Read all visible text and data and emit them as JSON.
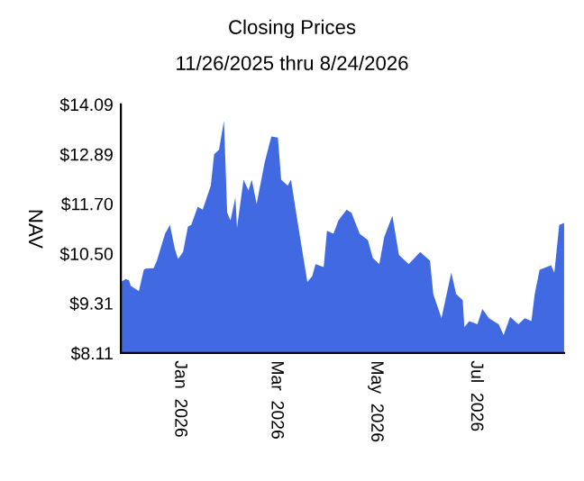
{
  "chart_data": {
    "type": "area",
    "title": "Closing Prices",
    "subtitle": "11/26/2025 thru 8/24/2026",
    "ylabel": "NAV",
    "x": [
      "2025-11-26",
      "2025-11-29",
      "2025-12-01",
      "2025-12-02",
      "2025-12-07",
      "2025-12-10",
      "2025-12-11",
      "2025-12-16",
      "2025-12-18",
      "2025-12-23",
      "2025-12-26",
      "2025-12-29",
      "2025-12-31",
      "2026-01-03",
      "2026-01-06",
      "2026-01-08",
      "2026-01-12",
      "2026-01-15",
      "2026-01-20",
      "2026-01-22",
      "2026-01-25",
      "2026-01-28",
      "2026-01-30",
      "2026-02-01",
      "2026-02-04",
      "2026-02-05",
      "2026-02-09",
      "2026-02-12",
      "2026-02-14",
      "2026-02-17",
      "2026-02-22",
      "2026-02-26",
      "2026-03-02",
      "2026-03-04",
      "2026-03-08",
      "2026-03-10",
      "2026-03-14",
      "2026-03-20",
      "2026-03-23",
      "2026-03-25",
      "2026-03-30",
      "2026-04-01",
      "2026-04-05",
      "2026-04-08",
      "2026-04-13",
      "2026-04-16",
      "2026-04-21",
      "2026-04-26",
      "2026-04-29",
      "2026-05-03",
      "2026-05-06",
      "2026-05-11",
      "2026-05-15",
      "2026-05-21",
      "2026-05-28",
      "2026-06-03",
      "2026-06-05",
      "2026-06-10",
      "2026-06-16",
      "2026-06-19",
      "2026-06-23",
      "2026-06-24",
      "2026-06-27",
      "2026-07-02",
      "2026-07-05",
      "2026-07-09",
      "2026-07-15",
      "2026-07-18",
      "2026-07-22",
      "2026-07-27",
      "2026-07-31",
      "2026-08-04",
      "2026-08-06",
      "2026-08-09",
      "2026-08-16",
      "2026-08-18",
      "2026-08-21",
      "2026-08-24"
    ],
    "series": [
      {
        "color": "#4169e1",
        "values": [
          9.82,
          9.89,
          9.86,
          9.73,
          9.6,
          10.11,
          10.14,
          10.15,
          10.33,
          10.98,
          11.19,
          10.61,
          10.37,
          10.54,
          11.15,
          11.19,
          11.63,
          11.56,
          12.14,
          12.89,
          13.0,
          13.7,
          11.48,
          11.3,
          11.85,
          11.12,
          12.28,
          12.02,
          12.28,
          11.7,
          12.71,
          13.32,
          13.29,
          12.28,
          12.14,
          12.28,
          11.27,
          9.82,
          9.96,
          10.25,
          10.18,
          11.05,
          10.98,
          11.3,
          11.56,
          11.48,
          10.98,
          10.83,
          10.4,
          10.25,
          10.9,
          11.41,
          10.47,
          10.25,
          10.54,
          10.33,
          9.53,
          8.95,
          10.04,
          9.53,
          9.38,
          8.73,
          8.88,
          8.8,
          9.17,
          8.95,
          8.8,
          8.54,
          8.98,
          8.8,
          8.95,
          8.88,
          9.53,
          10.11,
          10.22,
          10.04,
          11.19,
          11.24
        ]
      }
    ],
    "xlim": [
      "2025-11-26",
      "2026-08-24"
    ],
    "xticks": [
      {
        "value": "2026-01-01",
        "label": "Jan  2026"
      },
      {
        "value": "2026-03-01",
        "label": "Mar  2026"
      },
      {
        "value": "2026-05-01",
        "label": "May  2026"
      },
      {
        "value": "2026-07-01",
        "label": "Jul  2026"
      }
    ],
    "ylim": [
      8.11,
      14.09
    ],
    "yticks": [
      {
        "value": 8.11,
        "label": "$8.11"
      },
      {
        "value": 9.31,
        "label": "$9.31"
      },
      {
        "value": 10.5,
        "label": "$10.50"
      },
      {
        "value": 11.7,
        "label": "$11.70"
      },
      {
        "value": 12.89,
        "label": "$12.89"
      },
      {
        "value": 14.09,
        "label": "$14.09"
      }
    ],
    "grid": false,
    "legend": false
  }
}
